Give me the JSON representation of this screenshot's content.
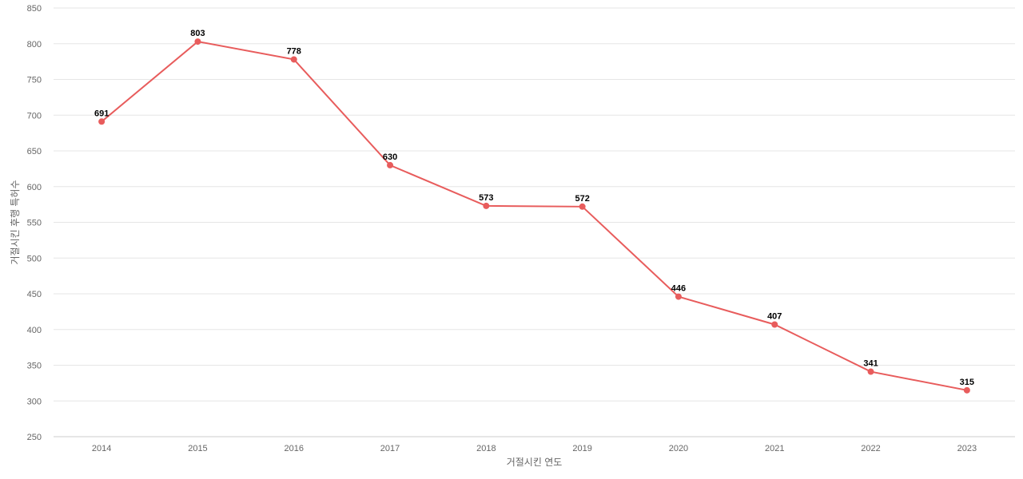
{
  "chart_data": {
    "type": "line",
    "title": "",
    "xlabel": "거절시킨 연도",
    "ylabel": "거절시킨 후행 특허수",
    "x": [
      "2014",
      "2015",
      "2016",
      "2017",
      "2018",
      "2019",
      "2020",
      "2021",
      "2022",
      "2023"
    ],
    "y_ticks": [
      250,
      300,
      350,
      400,
      450,
      500,
      550,
      600,
      650,
      700,
      750,
      800,
      850
    ],
    "ylim": [
      250,
      850
    ],
    "grid": true,
    "legend": "none",
    "series": [
      {
        "values": [
          691,
          803,
          778,
          630,
          573,
          572,
          446,
          407,
          341,
          315
        ],
        "color": "#e85c5c"
      }
    ],
    "data_labels": [
      "691",
      "803",
      "778",
      "630",
      "573",
      "572",
      "446",
      "407",
      "341",
      "315"
    ]
  }
}
